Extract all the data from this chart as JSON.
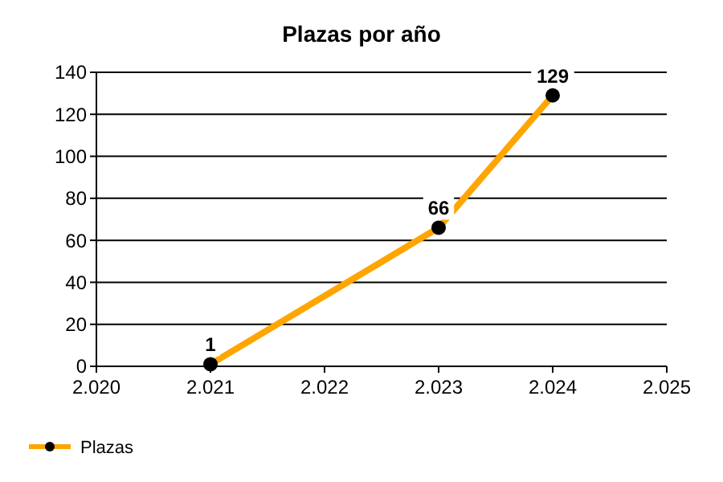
{
  "chart_data": {
    "type": "line",
    "title": "Plazas por año",
    "x": [
      2.021,
      2.023,
      2.024
    ],
    "series": [
      {
        "name": "Plazas",
        "color": "#ffa500",
        "values": [
          1,
          66,
          129
        ]
      }
    ],
    "xlim": [
      2.02,
      2.025
    ],
    "xticks": [
      {
        "value": 2.02,
        "label": "2.020"
      },
      {
        "value": 2.021,
        "label": "2.021"
      },
      {
        "value": 2.022,
        "label": "2.022"
      },
      {
        "value": 2.023,
        "label": "2.023"
      },
      {
        "value": 2.024,
        "label": "2.024"
      },
      {
        "value": 2.025,
        "label": "2.025"
      }
    ],
    "ylim": [
      0,
      140
    ],
    "yticks": [
      0,
      20,
      40,
      60,
      80,
      100,
      120,
      140
    ],
    "grid": "y",
    "legend": "bottom left",
    "marker": "circle",
    "line_style": "solid",
    "data_labels": true
  }
}
